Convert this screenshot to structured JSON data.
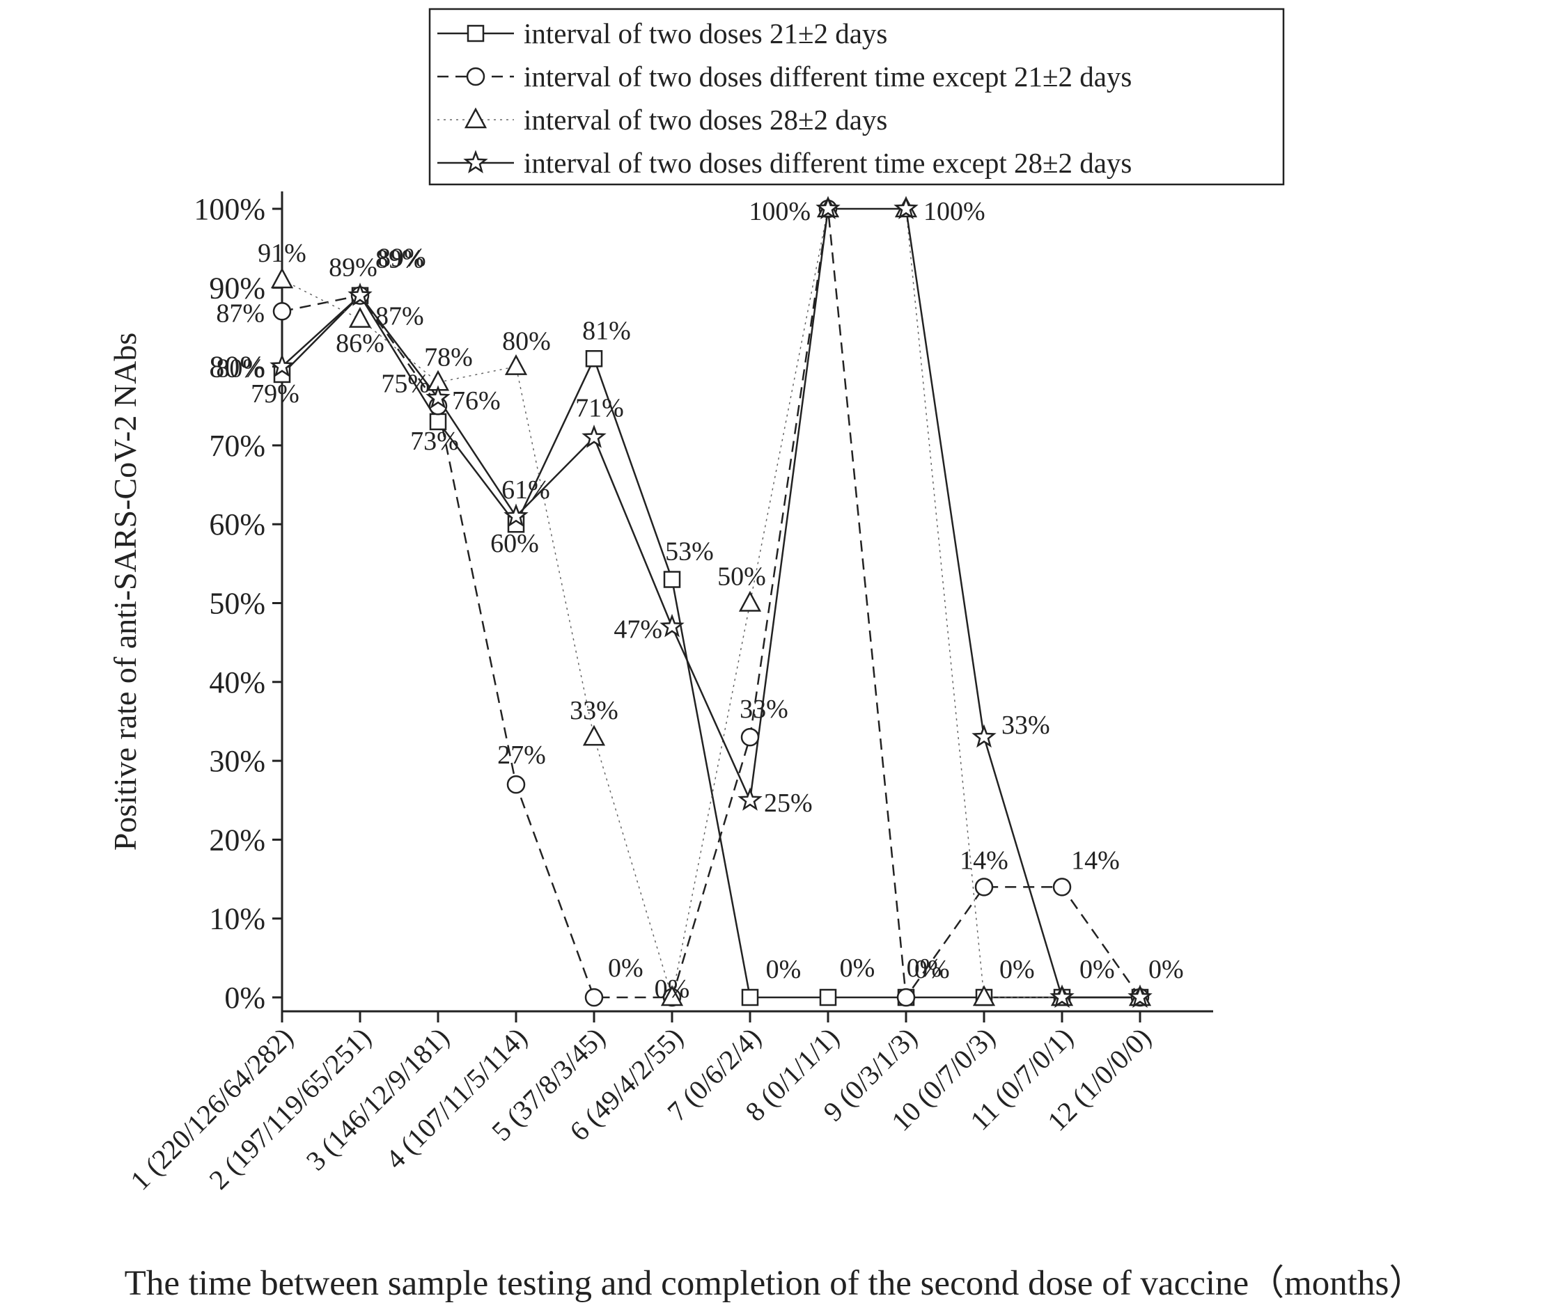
{
  "chart_data": {
    "type": "line",
    "xlabel": "The time between sample testing and completion of the second dose of vaccine（months）",
    "ylabel": "Positive rate of anti-SARS-CoV-2 NAbs",
    "ylim": [
      0,
      100
    ],
    "ytick_labels": [
      "0%",
      "10%",
      "20%",
      "30%",
      "40%",
      "50%",
      "60%",
      "70%",
      "80%",
      "90%",
      "100%"
    ],
    "grid": false,
    "legend_position": "top-center",
    "categories": [
      "1 (220/126/64/282)",
      "2 (197/119/65/251)",
      "3 (146/12/9/181)",
      "4 (107/11/5/114)",
      "5 (37/8/3/45)",
      "6 (49/4/2/55)",
      "7 (0/6/2/4)",
      "8 (0/1/1/1)",
      "9 (0/3/1/3)",
      "10 (0/7/0/3)",
      "11 (0/7/0/1)",
      "12 (1/0/0/0)"
    ],
    "series": [
      {
        "name": "interval of two doses 21±2 days",
        "marker": "square",
        "line": "solid",
        "values": [
          79,
          89,
          73,
          60,
          81,
          53,
          0,
          0,
          0,
          0,
          0,
          0
        ],
        "labels": [
          "79%",
          "89%",
          "73%",
          "60%",
          "81%",
          "53%",
          "0%",
          "0%",
          "0%",
          "",
          "",
          ""
        ]
      },
      {
        "name": "interval of two doses different time except  21±2 days",
        "marker": "circle",
        "line": "dashed",
        "values": [
          87,
          89,
          75,
          27,
          0,
          0,
          33,
          100,
          0,
          14,
          14,
          0
        ],
        "labels": [
          "87%",
          "89%",
          "75%",
          "27%",
          "0%",
          "0%",
          "33%",
          "",
          "0%",
          "14%",
          "14%",
          "0%"
        ]
      },
      {
        "name": "interval of two doses 28±2 days",
        "marker": "triangle",
        "line": "dotted",
        "values": [
          91,
          86,
          78,
          80,
          33,
          0,
          50,
          100,
          100,
          0,
          0,
          0
        ],
        "labels": [
          "91%",
          "86%",
          "78%",
          "80%",
          "33%",
          "",
          "50%",
          "",
          "",
          "0%",
          "",
          ""
        ]
      },
      {
        "name": "interval of two doses different time except 28±2 days",
        "marker": "star",
        "line": "solid",
        "values": [
          80,
          89,
          76,
          61,
          71,
          47,
          25,
          100,
          100,
          33,
          0,
          0
        ],
        "labels": [
          "80%",
          "",
          "76%",
          "61%",
          "71%",
          "47%",
          "25%",
          "100%",
          "100%",
          "33%",
          "0%",
          ""
        ]
      }
    ]
  }
}
